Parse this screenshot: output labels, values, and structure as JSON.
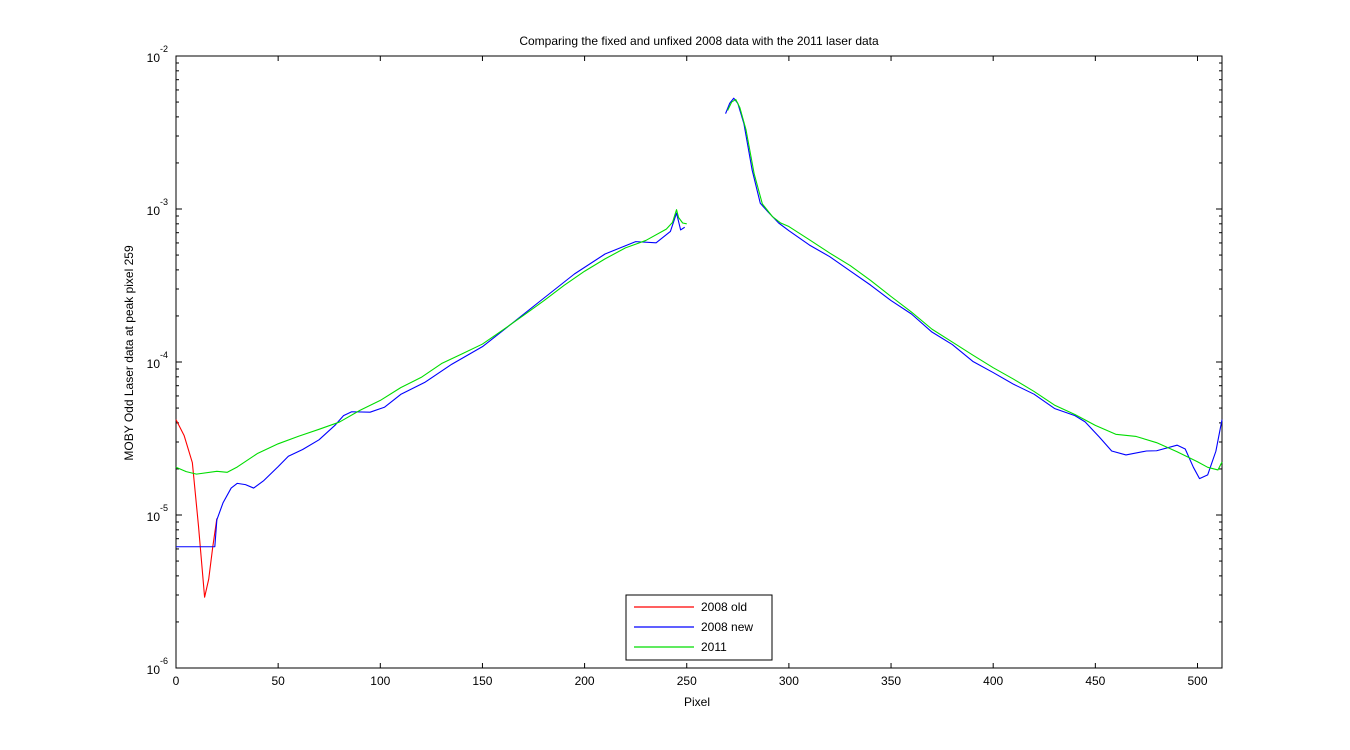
{
  "chart_data": {
    "type": "line",
    "title": "Comparing the fixed and unfixed 2008 data with the 2011 laser data",
    "xlabel": "Pixel",
    "ylabel": "MOBY Odd Laser data at peak pixel 259",
    "xlim": [
      0,
      512
    ],
    "ylim": [
      1e-06,
      0.01
    ],
    "yscale": "log",
    "x_ticks": [
      0,
      50,
      100,
      150,
      200,
      250,
      300,
      350,
      400,
      450,
      500
    ],
    "y_ticks": [
      {
        "base": "10",
        "exp": "-6",
        "value": 1e-06
      },
      {
        "base": "10",
        "exp": "-5",
        "value": 1e-05
      },
      {
        "base": "10",
        "exp": "-4",
        "value": 0.0001
      },
      {
        "base": "10",
        "exp": "-3",
        "value": 0.001
      },
      {
        "base": "10",
        "exp": "-2",
        "value": 0.01
      }
    ],
    "legend_position": "bottom-center",
    "series": [
      {
        "name": "2008 old",
        "color": "#ff0000",
        "points": [
          [
            0,
            4.2e-05
          ],
          [
            4,
            3.3e-05
          ],
          [
            8,
            2.2e-05
          ],
          [
            11,
            8.5e-06
          ],
          [
            14,
            2.9e-06
          ],
          [
            16,
            3.8e-06
          ],
          [
            18,
            6.2e-06
          ],
          [
            20,
            9.5e-06
          ]
        ]
      },
      {
        "name": "2008 new",
        "color": "#0000ff",
        "points": [
          [
            0,
            6.2e-06
          ],
          [
            10,
            6.2e-06
          ],
          [
            19,
            6.2e-06
          ],
          [
            20,
            9.3e-06
          ],
          [
            23,
            1.2e-05
          ],
          [
            27,
            1.5e-05
          ],
          [
            30,
            1.61e-05
          ],
          [
            34,
            1.58e-05
          ],
          [
            38,
            1.5e-05
          ],
          [
            43,
            1.68e-05
          ],
          [
            50,
            2.07e-05
          ],
          [
            55,
            2.42e-05
          ],
          [
            62,
            2.68e-05
          ],
          [
            70,
            3.1e-05
          ],
          [
            78,
            3.88e-05
          ],
          [
            82,
            4.46e-05
          ],
          [
            86,
            4.73e-05
          ],
          [
            95,
            4.7e-05
          ],
          [
            102,
            5.06e-05
          ],
          [
            110,
            6.14e-05
          ],
          [
            122,
            7.39e-05
          ],
          [
            135,
            9.67e-05
          ],
          [
            150,
            0.000126
          ],
          [
            165,
            0.000181
          ],
          [
            180,
            0.000261
          ],
          [
            195,
            0.000376
          ],
          [
            210,
            0.000508
          ],
          [
            225,
            0.000612
          ],
          [
            235,
            0.000601
          ],
          [
            242,
            0.000713
          ],
          [
            245,
            0.00094
          ],
          [
            247,
            0.00073
          ],
          [
            249,
            0.00076
          ],
          null,
          [
            269,
            0.0042
          ],
          [
            271,
            0.0049
          ],
          [
            273,
            0.0053
          ],
          [
            275,
            0.0049
          ],
          [
            278,
            0.0036
          ],
          [
            282,
            0.0018
          ],
          [
            286,
            0.00109
          ],
          [
            290,
            0.00095
          ],
          [
            295,
            0.00081
          ],
          [
            300,
            0.000722
          ],
          [
            310,
            0.000582
          ],
          [
            320,
            0.000488
          ],
          [
            330,
            0.000394
          ],
          [
            340,
            0.000318
          ],
          [
            350,
            0.000252
          ],
          [
            360,
            0.000206
          ],
          [
            370,
            0.000157
          ],
          [
            380,
            0.00013
          ],
          [
            390,
            0.000101
          ],
          [
            400,
            8.53e-05
          ],
          [
            410,
            7.15e-05
          ],
          [
            420,
            6.16e-05
          ],
          [
            430,
            4.97e-05
          ],
          [
            440,
            4.46e-05
          ],
          [
            445,
            4.06e-05
          ],
          [
            452,
            3.23e-05
          ],
          [
            458,
            2.62e-05
          ],
          [
            465,
            2.47e-05
          ],
          [
            475,
            2.62e-05
          ],
          [
            480,
            2.63e-05
          ],
          [
            490,
            2.86e-05
          ],
          [
            494,
            2.7e-05
          ],
          [
            498,
            2.05e-05
          ],
          [
            501,
            1.73e-05
          ],
          [
            505,
            1.83e-05
          ],
          [
            509,
            2.61e-05
          ],
          [
            512,
            4.2e-05
          ]
        ]
      },
      {
        "name": "2011",
        "color": "#00dd00",
        "points": [
          [
            0,
            2.05e-05
          ],
          [
            5,
            1.92e-05
          ],
          [
            10,
            1.85e-05
          ],
          [
            20,
            1.93e-05
          ],
          [
            25,
            1.9e-05
          ],
          [
            30,
            2.06e-05
          ],
          [
            40,
            2.53e-05
          ],
          [
            50,
            2.92e-05
          ],
          [
            60,
            3.27e-05
          ],
          [
            70,
            3.63e-05
          ],
          [
            80,
            4.05e-05
          ],
          [
            90,
            4.83e-05
          ],
          [
            100,
            5.61e-05
          ],
          [
            110,
            6.8e-05
          ],
          [
            120,
            7.93e-05
          ],
          [
            130,
            9.77e-05
          ],
          [
            140,
            0.000113
          ],
          [
            150,
            0.000131
          ],
          [
            160,
            0.000162
          ],
          [
            170,
            0.000201
          ],
          [
            180,
            0.000251
          ],
          [
            190,
            0.000317
          ],
          [
            200,
            0.000392
          ],
          [
            210,
            0.000472
          ],
          [
            220,
            0.000557
          ],
          [
            230,
            0.000623
          ],
          [
            240,
            0.000739
          ],
          [
            243,
            0.000816
          ],
          [
            245,
            0.00099
          ],
          [
            246,
            0.00088
          ],
          [
            248,
            0.00081
          ],
          [
            250,
            0.0008
          ],
          null,
          [
            270,
            0.0044
          ],
          [
            272,
            0.005
          ],
          [
            274,
            0.0052
          ],
          [
            276,
            0.0046
          ],
          [
            279,
            0.0033
          ],
          [
            283,
            0.0017
          ],
          [
            287,
            0.00108
          ],
          [
            292,
            0.00089
          ],
          [
            296,
            0.00081
          ],
          [
            300,
            0.000768
          ],
          [
            310,
            0.00063
          ],
          [
            320,
            0.000515
          ],
          [
            330,
            0.000427
          ],
          [
            340,
            0.000341
          ],
          [
            350,
            0.000268
          ],
          [
            360,
            0.000212
          ],
          [
            370,
            0.000164
          ],
          [
            380,
            0.000135
          ],
          [
            390,
            0.000111
          ],
          [
            400,
            9.18e-05
          ],
          [
            410,
            7.72e-05
          ],
          [
            420,
            6.42e-05
          ],
          [
            430,
            5.23e-05
          ],
          [
            440,
            4.54e-05
          ],
          [
            450,
            3.85e-05
          ],
          [
            460,
            3.37e-05
          ],
          [
            470,
            3.26e-05
          ],
          [
            480,
            2.97e-05
          ],
          [
            490,
            2.59e-05
          ],
          [
            500,
            2.23e-05
          ],
          [
            505,
            2.05e-05
          ],
          [
            510,
            1.97e-05
          ],
          [
            512,
            2.22e-05
          ]
        ]
      }
    ]
  }
}
